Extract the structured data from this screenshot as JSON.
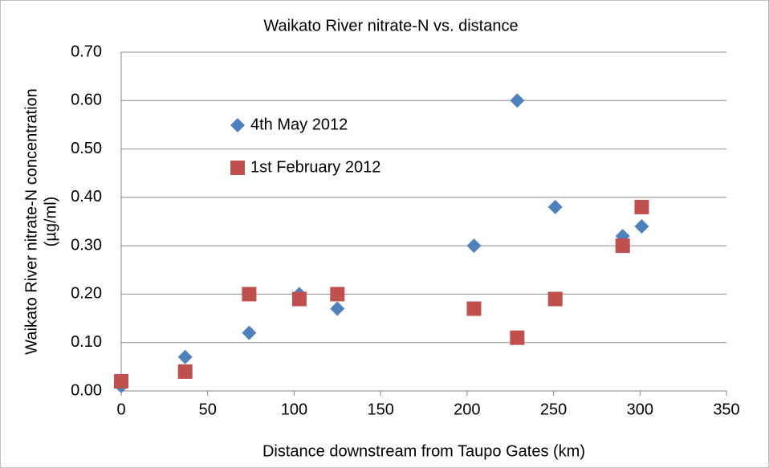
{
  "chart_data": {
    "type": "scatter",
    "title": "Waikato River nitrate-N vs. distance",
    "x_label": "Distance downstream from Taupo Gates (km)",
    "y_label": [
      "Waikato River nitrate-N concentration",
      "(µg/ml)"
    ],
    "xlim": [
      0,
      350
    ],
    "xticks": [
      0,
      50,
      100,
      150,
      200,
      250,
      300,
      350
    ],
    "ylim": [
      0,
      0.7
    ],
    "yticks": [
      {
        "value": 0,
        "label": "0.00"
      },
      {
        "value": 0.1,
        "label": "0.10"
      },
      {
        "value": 0.2,
        "label": "0.20"
      },
      {
        "value": 0.3,
        "label": "0.30"
      },
      {
        "value": 0.4,
        "label": "0.40"
      },
      {
        "value": 0.5,
        "label": "0.50"
      },
      {
        "value": 0.6,
        "label": "0.60"
      },
      {
        "value": 0.7,
        "label": "0.70"
      }
    ],
    "grid": true,
    "legend": "upper-left",
    "series": [
      {
        "name": "4th May 2012",
        "color": "#4f81bd",
        "marker": "diamond",
        "x": [
          0,
          37,
          74,
          103,
          125,
          204,
          229,
          251,
          290,
          301
        ],
        "values": [
          0.01,
          0.07,
          0.12,
          0.2,
          0.17,
          0.3,
          0.6,
          0.38,
          0.32,
          0.34
        ]
      },
      {
        "name": "1st February 2012",
        "color": "#c0504d",
        "marker": "square",
        "x": [
          0,
          37,
          74,
          103,
          125,
          204,
          229,
          251,
          290,
          301
        ],
        "values": [
          0.02,
          0.04,
          0.2,
          0.19,
          0.2,
          0.17,
          0.11,
          0.19,
          0.3,
          0.38
        ]
      }
    ]
  }
}
